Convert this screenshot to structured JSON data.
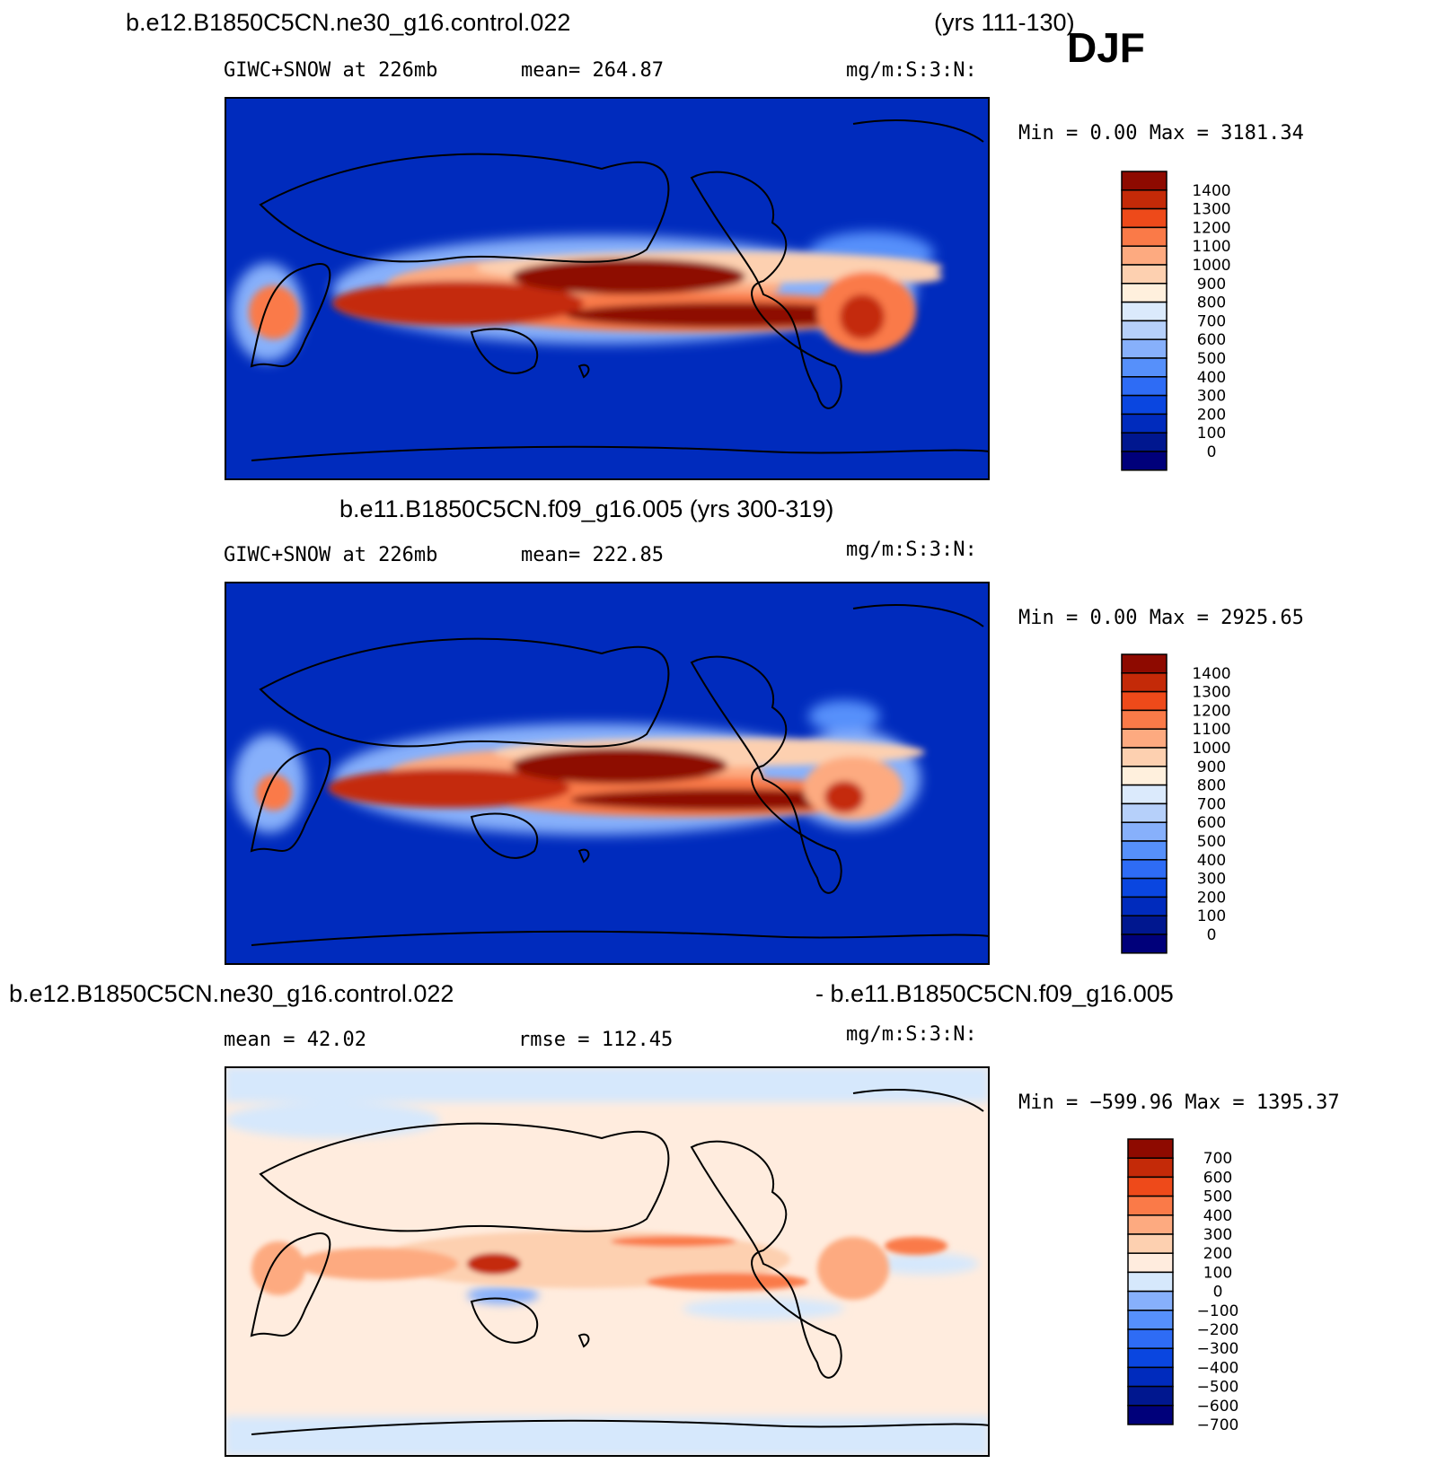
{
  "header": {
    "case_title": "b.e12.B1850C5CN.ne30_g16.control.022",
    "years": "(yrs 111-130)",
    "season": "DJF"
  },
  "colors": {
    "abs_scale": [
      "#00007a",
      "#00178f",
      "#002bbd",
      "#0a46e0",
      "#2e6cf5",
      "#5690fb",
      "#87b0fb",
      "#b6d0fa",
      "#dbeafc",
      "#fff0dd",
      "#fdd0b0",
      "#fdaa80",
      "#fa7a48",
      "#ee4a1a",
      "#c42a08",
      "#8e0a00"
    ],
    "diff_scale": [
      "#00007a",
      "#00178f",
      "#002bbd",
      "#0a46e0",
      "#2e6cf5",
      "#5690fb",
      "#87b0fb",
      "#d6e8fc",
      "#ffecde",
      "#fdd0b0",
      "#fdaa80",
      "#fa7a48",
      "#ee4a1a",
      "#c42a08",
      "#8e0a00"
    ]
  },
  "chart_data": [
    {
      "type": "heatmap",
      "title": "b.e12.B1850C5CN.ne30_g16.control.022",
      "subtitle_left": "GIWC+SNOW at 226mb",
      "subtitle_mid": "mean=  264.87",
      "subtitle_right": "mg/m:S:3:N:",
      "min_max": "Min =    0.00 Max = 3181.34",
      "colorbar_levels": [
        "1400",
        "1300",
        "1200",
        "1100",
        "1000",
        "900",
        "800",
        "700",
        "600",
        "500",
        "400",
        "300",
        "200",
        "100",
        "0"
      ],
      "statistics": {
        "mean": 264.87,
        "min": 0.0,
        "max": 3181.34
      }
    },
    {
      "type": "heatmap",
      "title": "b.e11.B1850C5CN.f09_g16.005 (yrs 300-319)",
      "subtitle_left": "GIWC+SNOW at 226mb",
      "subtitle_mid": "mean=  222.85",
      "subtitle_right": "mg/m:S:3:N:",
      "min_max": "Min =    0.00 Max = 2925.65",
      "colorbar_levels": [
        "1400",
        "1300",
        "1200",
        "1100",
        "1000",
        "900",
        "800",
        "700",
        "600",
        "500",
        "400",
        "300",
        "200",
        "100",
        "0"
      ],
      "statistics": {
        "mean": 222.85,
        "min": 0.0,
        "max": 2925.65
      }
    },
    {
      "type": "heatmap",
      "title_left": "b.e12.B1850C5CN.ne30_g16.control.022",
      "title_right": "- b.e11.B1850C5CN.f09_g16.005",
      "subtitle_left": "mean =   42.02",
      "subtitle_mid": "rmse =  112.45",
      "subtitle_right": "mg/m:S:3:N:",
      "min_max": "Min = −599.96 Max = 1395.37",
      "colorbar_levels": [
        "700",
        "600",
        "500",
        "400",
        "300",
        "200",
        "100",
        "0",
        "−100",
        "−200",
        "−300",
        "−400",
        "−500",
        "−600",
        "−700"
      ],
      "statistics": {
        "mean": 42.02,
        "rmse": 112.45,
        "min": -599.96,
        "max": 1395.37
      }
    }
  ]
}
